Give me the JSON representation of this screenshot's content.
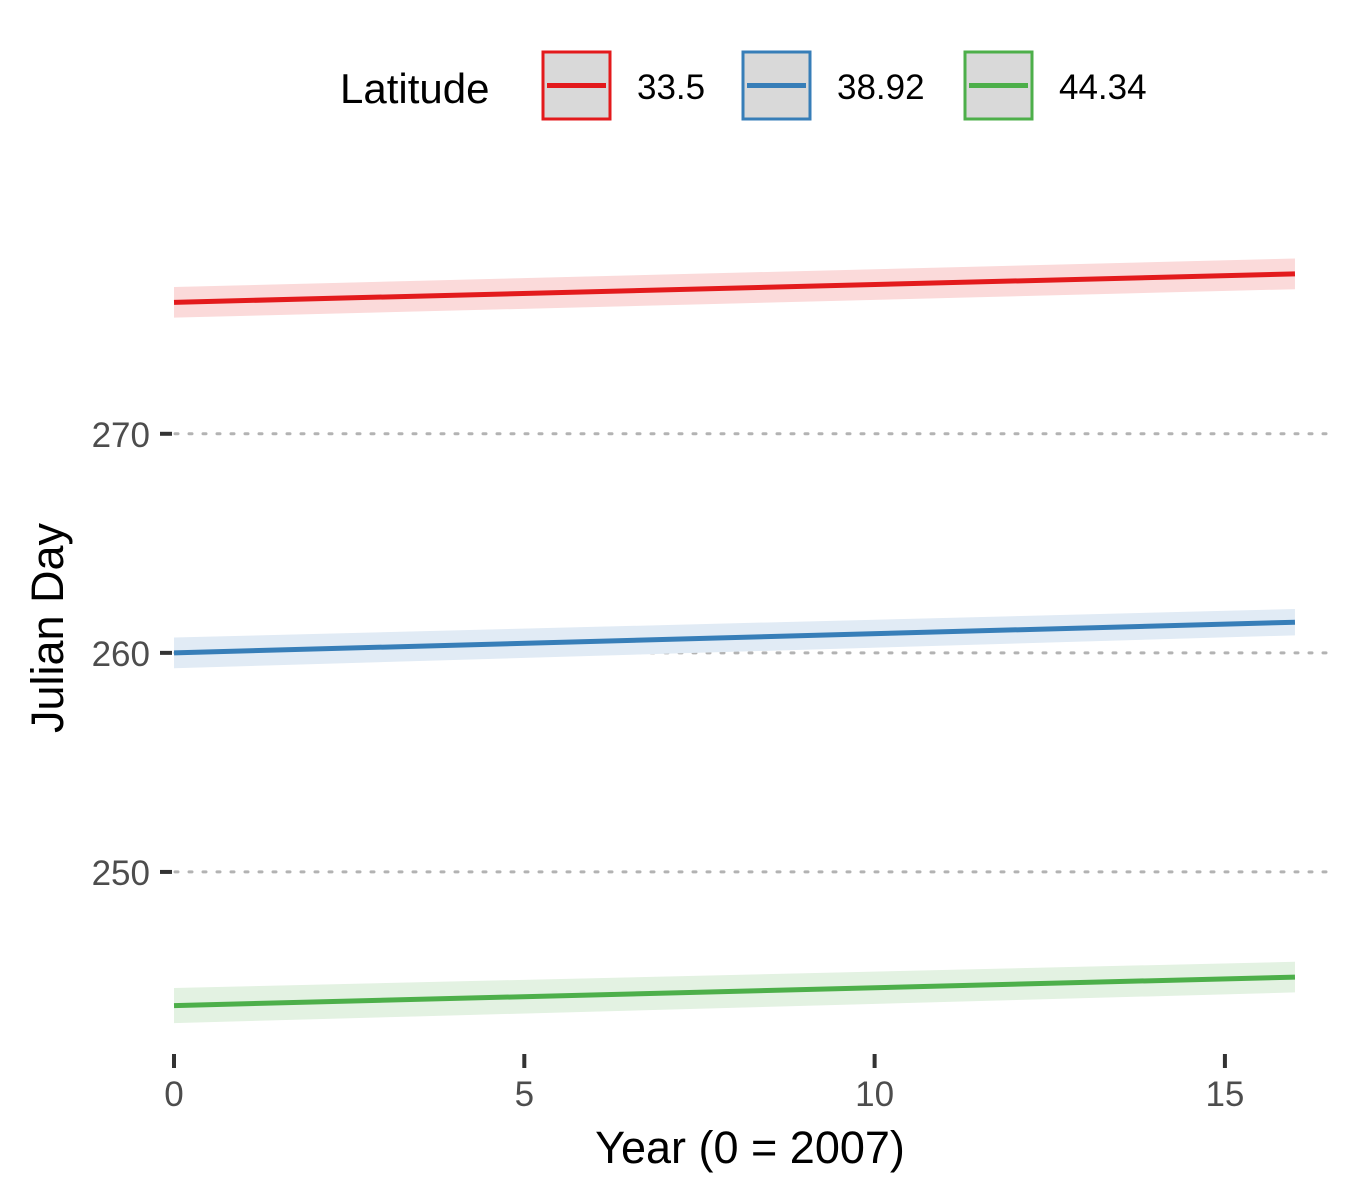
{
  "chart_data": {
    "type": "line",
    "xlabel": "Year (0 = 2007)",
    "ylabel": "Julian Day",
    "xlim": [
      -0.2,
      16.5
    ],
    "ylim": [
      242.1,
      280.9
    ],
    "x_ticks": [
      0,
      5,
      10,
      15
    ],
    "y_ticks": [
      250,
      260,
      270
    ],
    "grid": "horizontal dotted major lines",
    "legend": {
      "title": "Latitude",
      "position": "top"
    },
    "series": [
      {
        "name": "33.5",
        "color": "#e31a1c",
        "ribbon_color": "#fbdada",
        "x": [
          0,
          16
        ],
        "y": [
          276.0,
          277.3
        ],
        "lower": [
          275.3,
          276.6
        ],
        "upper": [
          276.7,
          278.0
        ]
      },
      {
        "name": "38.92",
        "color": "#377eb8",
        "ribbon_color": "#e1ebf5",
        "x": [
          0,
          16
        ],
        "y": [
          260.0,
          261.4
        ],
        "lower": [
          259.3,
          260.8
        ],
        "upper": [
          260.7,
          262.0
        ]
      },
      {
        "name": "44.34",
        "color": "#4daf4a",
        "ribbon_color": "#e3f2e2",
        "x": [
          0,
          16
        ],
        "y": [
          243.9,
          245.2
        ],
        "lower": [
          243.1,
          244.5
        ],
        "upper": [
          244.7,
          245.9
        ]
      }
    ]
  }
}
